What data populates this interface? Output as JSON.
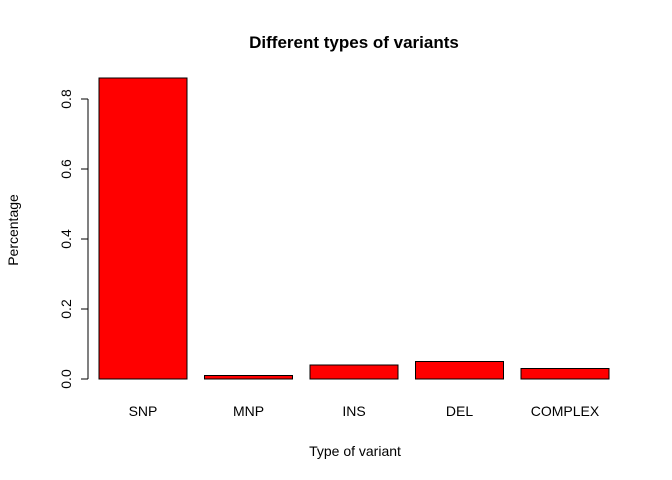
{
  "chart_data": {
    "type": "bar",
    "title": "Different types of variants",
    "xlabel": "Type of variant",
    "ylabel": "Percentage",
    "categories": [
      "SNP",
      "MNP",
      "INS",
      "DEL",
      "COMPLEX"
    ],
    "values": [
      0.86,
      0.01,
      0.04,
      0.05,
      0.03
    ],
    "ylim": [
      0,
      0.86
    ],
    "yticks": [
      "0.0",
      "0.2",
      "0.4",
      "0.6",
      "0.8"
    ],
    "bar_color": "#ff0000",
    "grid": false
  }
}
